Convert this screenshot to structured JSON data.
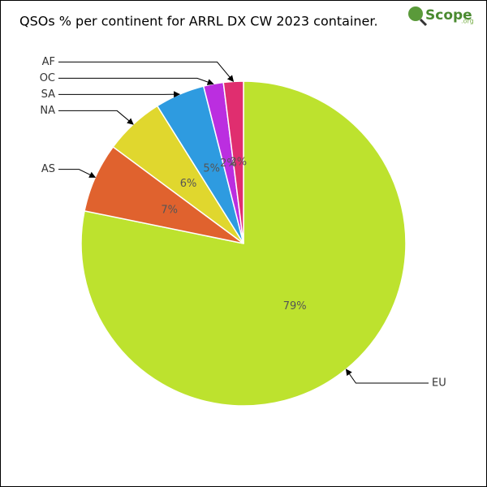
{
  "chart_data": {
    "type": "pie",
    "title": "QSOs % per continent for ARRL DX CW 2023 container.",
    "logo": "Scope",
    "logo_suffix": ".org",
    "categories": [
      "EU",
      "AS",
      "NA",
      "SA",
      "OC",
      "AF"
    ],
    "values": [
      79,
      7,
      6,
      5,
      2,
      2
    ],
    "value_labels": [
      "79%",
      "7%",
      "6%",
      "5%",
      "2%",
      "2%"
    ],
    "colors": [
      "#bde22e",
      "#e0622e",
      "#e0d72e",
      "#2e9be0",
      "#bb2ee0",
      "#e02e6f"
    ]
  }
}
